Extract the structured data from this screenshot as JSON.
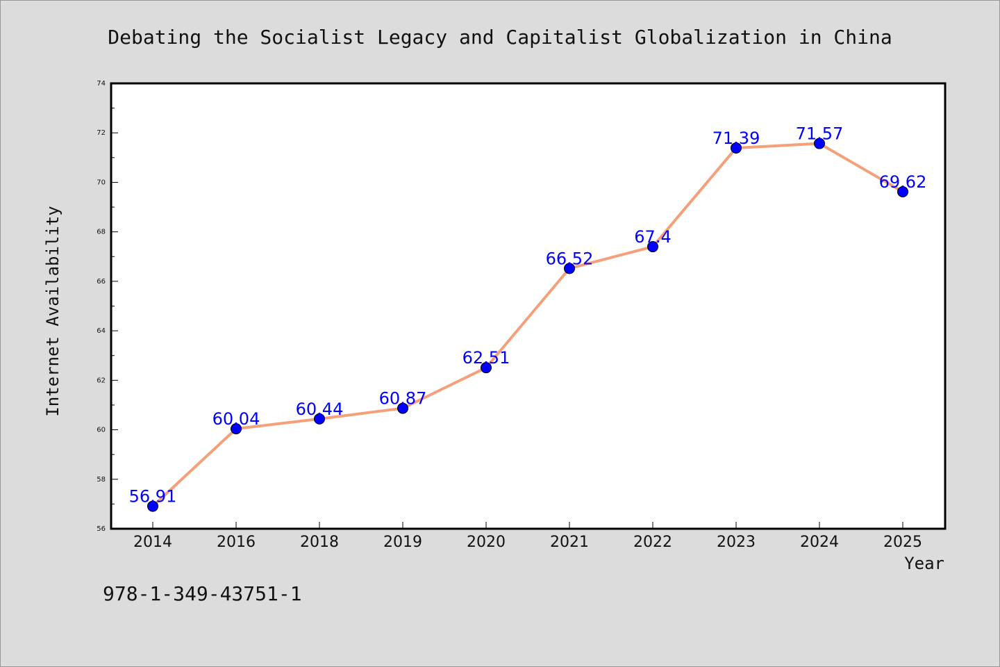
{
  "chart_data": {
    "type": "line",
    "title": "Debating the Socialist Legacy and Capitalist Globalization in China",
    "xlabel": "Year",
    "ylabel": "Internet Availability",
    "categories": [
      "2014",
      "2016",
      "2018",
      "2019",
      "2020",
      "2021",
      "2022",
      "2023",
      "2024",
      "2025"
    ],
    "series": [
      {
        "values": [
          56.91,
          60.04,
          60.44,
          60.87,
          62.51,
          66.52,
          67.4,
          71.39,
          71.57,
          69.62
        ],
        "data_labels": [
          "56.91",
          "60.04",
          "60.44",
          "60.87",
          "62.51",
          "66.52",
          "67.4",
          "71.39",
          "71.57",
          "69.62"
        ],
        "line_color": "#f4a07a",
        "marker_color": "#0000ff"
      }
    ],
    "ylim": [
      56,
      74
    ],
    "yticks": [
      "56",
      "58",
      "60",
      "62",
      "64",
      "66",
      "68",
      "70",
      "72",
      "74"
    ],
    "grid": false,
    "legend": "none"
  },
  "footer": {
    "isbn": "978-1-349-43751-1"
  },
  "colors": {
    "background": "#dcdcdc",
    "plot_background": "#ffffff",
    "label_color": "#0000ff"
  }
}
